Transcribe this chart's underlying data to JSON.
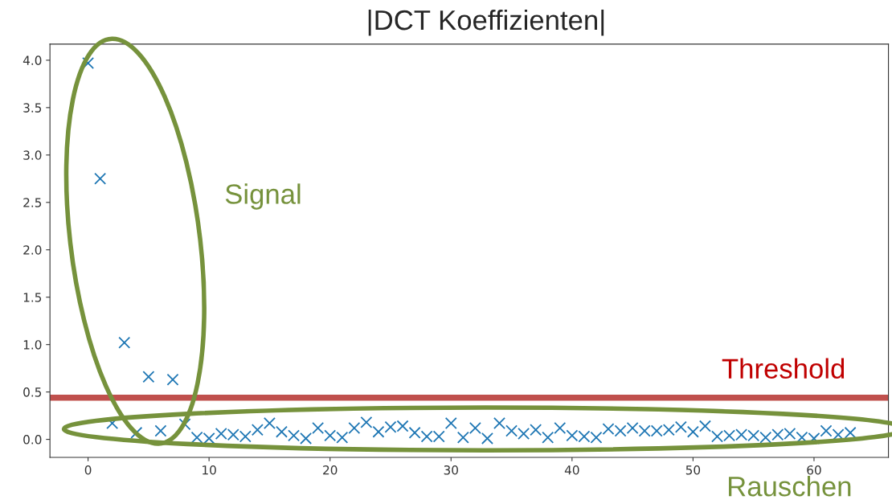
{
  "chart_data": {
    "type": "scatter",
    "title": "|DCT Koeffizienten|",
    "x": [
      0,
      1,
      2,
      3,
      4,
      5,
      6,
      7,
      8,
      9,
      10,
      11,
      12,
      13,
      14,
      15,
      16,
      17,
      18,
      19,
      20,
      21,
      22,
      23,
      24,
      25,
      26,
      27,
      28,
      29,
      30,
      31,
      32,
      33,
      34,
      35,
      36,
      37,
      38,
      39,
      40,
      41,
      42,
      43,
      44,
      45,
      46,
      47,
      48,
      49,
      50,
      51,
      52,
      53,
      54,
      55,
      56,
      57,
      58,
      59,
      60,
      61,
      62,
      63
    ],
    "series": [
      {
        "color": "#1f77b4",
        "values": [
          3.97,
          2.75,
          0.17,
          1.02,
          0.07,
          0.66,
          0.09,
          0.63,
          0.16,
          0.02,
          0.01,
          0.06,
          0.05,
          0.03,
          0.1,
          0.17,
          0.08,
          0.04,
          0.01,
          0.12,
          0.04,
          0.02,
          0.12,
          0.18,
          0.08,
          0.13,
          0.14,
          0.07,
          0.03,
          0.03,
          0.17,
          0.02,
          0.12,
          0.01,
          0.17,
          0.09,
          0.06,
          0.1,
          0.02,
          0.12,
          0.04,
          0.03,
          0.02,
          0.11,
          0.09,
          0.12,
          0.09,
          0.09,
          0.1,
          0.13,
          0.08,
          0.14,
          0.03,
          0.04,
          0.05,
          0.04,
          0.02,
          0.05,
          0.06,
          0.02,
          0.01,
          0.09,
          0.05,
          0.07
        ]
      }
    ],
    "marker": "cross",
    "xlim": [
      -3.15,
      66.15
    ],
    "ylim": [
      -0.19,
      4.17
    ],
    "xticks": [
      0,
      10,
      20,
      30,
      40,
      50,
      60
    ],
    "yticks": [
      {
        "value": 0,
        "label": "0.0"
      },
      {
        "value": 0.5,
        "label": "0.5"
      },
      {
        "value": 1,
        "label": "1.0"
      },
      {
        "value": 1.5,
        "label": "1.5"
      },
      {
        "value": 2,
        "label": "2.0"
      },
      {
        "value": 2.5,
        "label": "2.5"
      },
      {
        "value": 3,
        "label": "3.0"
      },
      {
        "value": 3.5,
        "label": "3.5"
      },
      {
        "value": 4,
        "label": "4.0"
      }
    ],
    "ref_lines": [
      {
        "axis": "y",
        "value": 0.44,
        "label": "Threshold",
        "color": "#c0504d"
      }
    ],
    "annotations": [
      "Signal",
      "Rauschen"
    ],
    "grid": false
  }
}
